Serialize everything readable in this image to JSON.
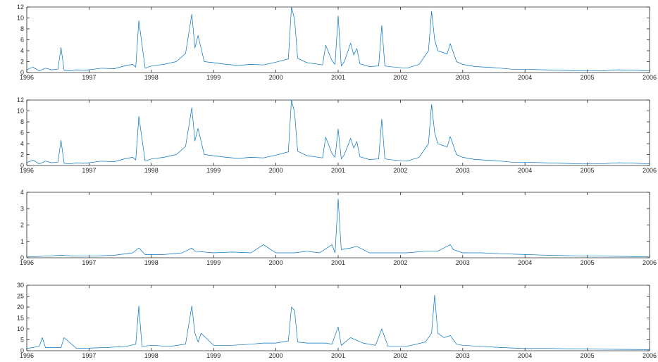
{
  "colors": {
    "series": "#0072BD",
    "axis": "#262626",
    "background": "#ffffff"
  },
  "chart_data": [
    {
      "type": "line",
      "title": "",
      "xlabel": "",
      "ylabel": "",
      "xlim": [
        1996.0,
        2006.0
      ],
      "ylim": [
        0,
        12
      ],
      "x_ticks": [
        "1996",
        "1997",
        "1998",
        "1999",
        "2000",
        "2001",
        "2002",
        "2003",
        "2004",
        "2005",
        "2006"
      ],
      "y_ticks": [
        "0",
        "2",
        "4",
        "6",
        "8",
        "10",
        "12"
      ],
      "grid": false,
      "series": [
        {
          "x": [
            1996.0,
            1996.1,
            1996.2,
            1996.3,
            1996.4,
            1996.5,
            1996.55,
            1996.6,
            1996.7,
            1996.8,
            1996.9,
            1997.0,
            1997.2,
            1997.4,
            1997.6,
            1997.7,
            1997.75,
            1997.8,
            1997.9,
            1998.0,
            1998.2,
            1998.4,
            1998.55,
            1998.65,
            1998.7,
            1998.75,
            1998.85,
            1999.0,
            1999.2,
            1999.4,
            1999.6,
            1999.8,
            2000.0,
            2000.2,
            2000.25,
            2000.3,
            2000.35,
            2000.5,
            2000.75,
            2000.8,
            2000.9,
            2000.95,
            2001.0,
            2001.05,
            2001.1,
            2001.2,
            2001.25,
            2001.3,
            2001.35,
            2001.5,
            2001.65,
            2001.7,
            2001.75,
            2001.9,
            2002.1,
            2002.3,
            2002.45,
            2002.5,
            2002.55,
            2002.6,
            2002.75,
            2002.8,
            2002.9,
            2003.0,
            2003.2,
            2003.5,
            2003.8,
            2004.0,
            2004.3,
            2004.6,
            2004.9,
            2005.2,
            2005.5,
            2005.8,
            2006.0
          ],
          "y": [
            0.5,
            1.0,
            0.3,
            0.8,
            0.5,
            0.6,
            4.6,
            0.4,
            0.3,
            0.5,
            0.4,
            0.5,
            0.8,
            0.7,
            1.3,
            1.5,
            1.0,
            9.5,
            0.8,
            1.2,
            1.5,
            2.0,
            3.5,
            10.7,
            4.5,
            6.8,
            2.0,
            1.8,
            1.5,
            1.3,
            1.5,
            1.4,
            1.9,
            2.5,
            12.0,
            9.8,
            2.6,
            1.8,
            1.4,
            5.0,
            2.2,
            1.5,
            10.4,
            1.2,
            2.0,
            5.4,
            3.2,
            4.4,
            1.6,
            1.1,
            1.2,
            8.6,
            1.2,
            1.0,
            0.8,
            1.5,
            4.0,
            11.2,
            6.0,
            4.0,
            3.4,
            5.3,
            2.0,
            1.5,
            1.1,
            0.9,
            0.6,
            0.6,
            0.5,
            0.4,
            0.3,
            0.3,
            0.5,
            0.4,
            0.3
          ]
        }
      ]
    },
    {
      "type": "line",
      "title": "",
      "xlabel": "",
      "ylabel": "",
      "xlim": [
        1996.0,
        2006.0
      ],
      "ylim": [
        0,
        12
      ],
      "x_ticks": [
        "1996",
        "1997",
        "1998",
        "1999",
        "2000",
        "2001",
        "2002",
        "2003",
        "2004",
        "2005",
        "2006"
      ],
      "y_ticks": [
        "0",
        "2",
        "4",
        "6",
        "8",
        "10",
        "12"
      ],
      "grid": false,
      "series": [
        {
          "x": [
            1996.0,
            1996.1,
            1996.2,
            1996.3,
            1996.4,
            1996.5,
            1996.55,
            1996.6,
            1996.7,
            1996.8,
            1996.9,
            1997.0,
            1997.2,
            1997.4,
            1997.6,
            1997.7,
            1997.75,
            1997.8,
            1997.9,
            1998.0,
            1998.2,
            1998.4,
            1998.55,
            1998.65,
            1998.7,
            1998.75,
            1998.85,
            1999.0,
            1999.2,
            1999.4,
            1999.6,
            1999.8,
            2000.0,
            2000.2,
            2000.25,
            2000.3,
            2000.35,
            2000.5,
            2000.75,
            2000.8,
            2000.9,
            2000.95,
            2001.0,
            2001.05,
            2001.1,
            2001.2,
            2001.25,
            2001.3,
            2001.35,
            2001.5,
            2001.65,
            2001.7,
            2001.75,
            2001.9,
            2002.1,
            2002.3,
            2002.45,
            2002.5,
            2002.55,
            2002.6,
            2002.75,
            2002.8,
            2002.9,
            2003.0,
            2003.2,
            2003.5,
            2003.8,
            2004.0,
            2004.3,
            2004.6,
            2004.9,
            2005.2,
            2005.5,
            2005.8,
            2006.0
          ],
          "y": [
            0.5,
            1.0,
            0.3,
            0.8,
            0.5,
            0.6,
            4.6,
            0.4,
            0.3,
            0.5,
            0.4,
            0.5,
            0.8,
            0.7,
            1.3,
            1.5,
            1.0,
            9.0,
            0.8,
            1.2,
            1.5,
            2.0,
            3.5,
            10.6,
            4.5,
            6.8,
            2.0,
            1.8,
            1.5,
            1.3,
            1.5,
            1.4,
            1.9,
            2.5,
            12.0,
            9.7,
            2.6,
            1.8,
            1.4,
            5.2,
            2.2,
            1.5,
            6.7,
            1.2,
            2.0,
            5.0,
            3.2,
            4.4,
            1.6,
            1.1,
            1.2,
            8.5,
            1.2,
            1.0,
            0.8,
            1.5,
            4.0,
            11.2,
            6.0,
            4.0,
            3.4,
            5.3,
            2.0,
            1.5,
            1.1,
            0.9,
            0.6,
            0.6,
            0.5,
            0.4,
            0.3,
            0.3,
            0.5,
            0.4,
            0.3
          ]
        }
      ]
    },
    {
      "type": "line",
      "title": "",
      "xlabel": "",
      "ylabel": "",
      "xlim": [
        1996.0,
        2006.0
      ],
      "ylim": [
        0,
        4
      ],
      "x_ticks": [
        "1996",
        "1997",
        "1998",
        "1999",
        "2000",
        "2001",
        "2002",
        "2003",
        "2004",
        "2005",
        "2006"
      ],
      "y_ticks": [
        "0",
        "1",
        "2",
        "3",
        "4"
      ],
      "grid": false,
      "series": [
        {
          "x": [
            1996.0,
            1996.3,
            1996.55,
            1996.8,
            1997.0,
            1997.4,
            1997.7,
            1997.8,
            1997.9,
            1998.2,
            1998.5,
            1998.65,
            1998.7,
            1999.0,
            1999.3,
            1999.6,
            1999.8,
            2000.0,
            2000.3,
            2000.5,
            2000.7,
            2000.9,
            2000.95,
            2001.0,
            2001.05,
            2001.2,
            2001.3,
            2001.5,
            2001.8,
            2002.1,
            2002.4,
            2002.6,
            2002.8,
            2002.85,
            2003.0,
            2003.3,
            2003.6,
            2004.0,
            2004.4,
            2004.8,
            2005.2,
            2005.6,
            2006.0
          ],
          "y": [
            0.05,
            0.1,
            0.15,
            0.1,
            0.1,
            0.15,
            0.3,
            0.6,
            0.2,
            0.2,
            0.3,
            0.6,
            0.4,
            0.3,
            0.35,
            0.3,
            0.8,
            0.3,
            0.3,
            0.4,
            0.3,
            0.8,
            0.3,
            3.6,
            0.5,
            0.6,
            0.7,
            0.3,
            0.3,
            0.3,
            0.4,
            0.4,
            0.8,
            0.5,
            0.3,
            0.3,
            0.25,
            0.2,
            0.15,
            0.12,
            0.1,
            0.08,
            0.05
          ]
        }
      ]
    },
    {
      "type": "line",
      "title": "",
      "xlabel": "",
      "ylabel": "",
      "xlim": [
        1996.0,
        2006.0
      ],
      "ylim": [
        0,
        30
      ],
      "x_ticks": [
        "1996",
        "1997",
        "1998",
        "1999",
        "2000",
        "2001",
        "2002",
        "2003",
        "2004",
        "2005",
        "2006"
      ],
      "y_ticks": [
        "0",
        "5",
        "10",
        "15",
        "20",
        "25",
        "30"
      ],
      "grid": false,
      "series": [
        {
          "x": [
            1996.0,
            1996.2,
            1996.25,
            1996.3,
            1996.55,
            1996.6,
            1996.8,
            1997.0,
            1997.3,
            1997.6,
            1997.75,
            1997.8,
            1997.85,
            1998.0,
            1998.3,
            1998.55,
            1998.65,
            1998.7,
            1998.75,
            1998.8,
            1999.0,
            1999.3,
            1999.6,
            1999.8,
            2000.0,
            2000.2,
            2000.25,
            2000.3,
            2000.35,
            2000.5,
            2000.8,
            2000.9,
            2001.0,
            2001.05,
            2001.2,
            2001.4,
            2001.6,
            2001.7,
            2001.8,
            2002.1,
            2002.4,
            2002.5,
            2002.55,
            2002.6,
            2002.7,
            2002.8,
            2002.9,
            2003.0,
            2003.3,
            2003.6,
            2004.0,
            2004.4,
            2004.8,
            2005.2,
            2005.6,
            2006.0
          ],
          "y": [
            1.0,
            2.0,
            6.0,
            1.5,
            1.5,
            6.0,
            1.0,
            1.2,
            1.5,
            2.0,
            3.0,
            20.5,
            2.0,
            2.5,
            2.0,
            3.0,
            20.5,
            8.0,
            4.0,
            8.0,
            2.5,
            2.5,
            3.0,
            3.5,
            3.5,
            4.5,
            20.0,
            18.5,
            4.0,
            3.5,
            3.5,
            3.0,
            11.0,
            2.5,
            6.0,
            3.5,
            2.5,
            10.0,
            2.0,
            2.0,
            4.0,
            8.0,
            25.5,
            8.0,
            6.0,
            7.0,
            3.0,
            2.5,
            2.0,
            1.5,
            1.0,
            1.0,
            0.8,
            0.7,
            0.6,
            0.5
          ]
        }
      ]
    }
  ]
}
